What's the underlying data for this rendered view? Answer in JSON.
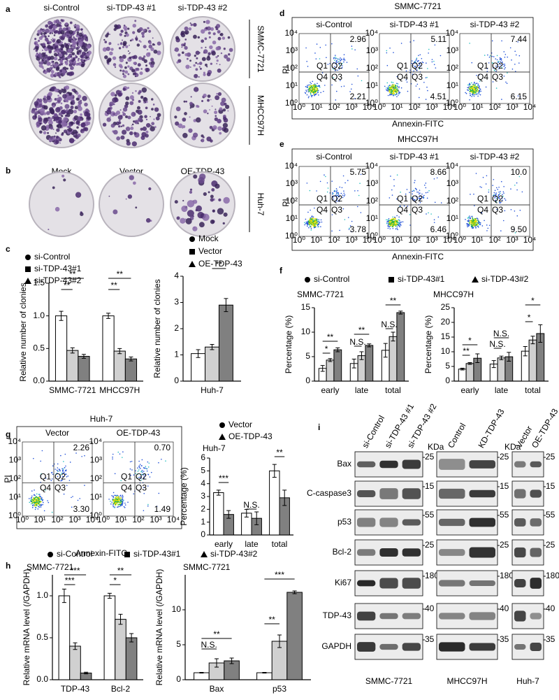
{
  "panel_labels": [
    "a",
    "b",
    "c",
    "d",
    "e",
    "f",
    "g",
    "h",
    "i"
  ],
  "colony": {
    "columns": [
      "si-Control",
      "si-TDP-43 #1",
      "si-TDP-43 #2"
    ],
    "rows": [
      "SMMC-7721",
      "MHCC97H"
    ],
    "columns_b": [
      "Mock",
      "Vector",
      "OE-TDP-43"
    ],
    "row_b": "Huh-7"
  },
  "flow": {
    "panels": [
      {
        "title": "SMMC-7721",
        "columns": [
          "si-Control",
          "si-TDP-43 #1",
          "si-TDP-43 #2"
        ],
        "upper_right": [
          "2.96",
          "5.11",
          "7.44"
        ],
        "lower_right": [
          "2.21",
          "4.51",
          "6.15"
        ]
      },
      {
        "title": "MHCC97H",
        "columns": [
          "si-Control",
          "si-TDP-43 #1",
          "si-TDP-43 #2"
        ],
        "upper_right": [
          "5.75",
          "8.66",
          "10.0"
        ],
        "lower_right": [
          "3.78",
          "6.46",
          "9.50"
        ]
      },
      {
        "title": "Huh-7",
        "columns": [
          "Vector",
          "OE-TDP-43"
        ],
        "upper_right": [
          "2.26",
          "0.70"
        ],
        "lower_right": [
          "3.30",
          "1.49"
        ]
      }
    ],
    "quadrants": [
      "Q1",
      "Q2",
      "Q4",
      "Q3"
    ],
    "axis_ticks": [
      "10⁰",
      "10¹",
      "10²",
      "10³",
      "10⁴"
    ],
    "y_label": "PI",
    "x_label": "Annexin-FITC"
  },
  "chart_data": [
    {
      "type": "bar",
      "y_label": "Relative number of clonies",
      "categories": [
        "SMMC-7721",
        "MHCC97H"
      ],
      "series": [
        {
          "name": "si-Control",
          "color": "#ffffff",
          "values": [
            1,
            1
          ],
          "errors": [
            0.07,
            0.04
          ]
        },
        {
          "name": "si-TDP-43#1",
          "color": "#d0d0d0",
          "values": [
            0.47,
            0.46
          ],
          "errors": [
            0.04,
            0.04
          ]
        },
        {
          "name": "si-TDP-43#2",
          "color": "#808080",
          "values": [
            0.38,
            0.34
          ],
          "errors": [
            0.03,
            0.03
          ]
        }
      ],
      "ylim": [
        0,
        1.5
      ],
      "yticks": [
        {
          "value": 0,
          "label": "0.0"
        },
        {
          "value": 0.5,
          "label": "0.5"
        },
        {
          "value": 1,
          "label": "1.0"
        },
        {
          "value": 1.5,
          "label": "1.5"
        }
      ],
      "annotations": [
        "**",
        "**",
        "**",
        "**"
      ]
    },
    {
      "type": "bar",
      "y_label": "Relative number of clonies",
      "categories": [
        "Huh-7"
      ],
      "series": [
        {
          "name": "Mock",
          "color": "#ffffff",
          "values": [
            1.05
          ],
          "errors": [
            0.15
          ]
        },
        {
          "name": "Vector",
          "color": "#d0d0d0",
          "values": [
            1.3
          ],
          "errors": [
            0.1
          ]
        },
        {
          "name": "OE-TDP-43",
          "color": "#808080",
          "values": [
            2.9
          ],
          "errors": [
            0.25
          ]
        }
      ],
      "ylim": [
        0,
        4
      ],
      "yticks": [
        0,
        1,
        2,
        3,
        4
      ],
      "annotations": [
        "**"
      ]
    },
    {
      "type": "bar",
      "title": "SMMC-7721",
      "y_label": "Percentage (%)",
      "categories": [
        "early",
        "late",
        "total"
      ],
      "series": [
        {
          "name": "si-Control",
          "color": "#ffffff",
          "values": [
            2.6,
            3.6,
            6.3
          ],
          "errors": [
            0.6,
            0.9,
            1.4
          ]
        },
        {
          "name": "si-TDP-43#1",
          "color": "#d0d0d0",
          "values": [
            4.3,
            5.2,
            9.1
          ],
          "errors": [
            0.3,
            0.8,
            0.9
          ]
        },
        {
          "name": "si-TDP-43#2",
          "color": "#808080",
          "values": [
            6.4,
            7.3,
            14
          ],
          "errors": [
            0.4,
            0.3,
            0.3
          ]
        }
      ],
      "ylim": [
        0,
        15
      ],
      "yticks": [
        0,
        5,
        10,
        15
      ],
      "annotations": [
        "*",
        "**",
        "N.S.",
        "**",
        "N.S.",
        "**"
      ]
    },
    {
      "type": "bar",
      "title": "MHCC97H",
      "y_label": "Percentage (%)",
      "categories": [
        "early",
        "late",
        "total"
      ],
      "series": [
        {
          "color": "#ffffff",
          "values": [
            4.1,
            5.8,
            10.2
          ],
          "errors": [
            0.3,
            1.2,
            1.6
          ]
        },
        {
          "color": "#d0d0d0",
          "values": [
            6,
            7.9,
            14
          ],
          "errors": [
            0.3,
            0.6,
            1.3
          ]
        },
        {
          "color": "#808080",
          "values": [
            7.8,
            8.3,
            16.2
          ],
          "errors": [
            1.5,
            1.5,
            3
          ]
        }
      ],
      "ylim": [
        0,
        25
      ],
      "yticks": [
        0,
        5,
        10,
        15,
        20,
        25
      ],
      "annotations": [
        "**",
        "*",
        "N.S.",
        "N.S.",
        "*",
        "*"
      ]
    },
    {
      "type": "bar",
      "title": "Huh-7",
      "y_label": "Percentage (%)",
      "categories": [
        "early",
        "late",
        "total"
      ],
      "series": [
        {
          "name": "Vector",
          "color": "#ffffff",
          "values": [
            3.3,
            1.7,
            5
          ],
          "errors": [
            0.2,
            0.3,
            0.5
          ]
        },
        {
          "name": "OE-TDP-43",
          "color": "#808080",
          "values": [
            1.6,
            1.3,
            2.9
          ],
          "errors": [
            0.3,
            0.5,
            0.6
          ]
        }
      ],
      "ylim": [
        0,
        6
      ],
      "yticks": [
        0,
        1,
        2,
        3,
        4,
        5,
        6
      ],
      "annotations": [
        "***",
        "N.S.",
        "**"
      ]
    },
    {
      "type": "bar",
      "title": "SMMC-7721",
      "y_label": "Relative mRNA level (/GAPDH)",
      "categories": [
        "TDP-43",
        "Bcl-2"
      ],
      "series": [
        {
          "name": "si-Control",
          "color": "#ffffff",
          "values": [
            1,
            1
          ],
          "errors": [
            0.08,
            0.03
          ]
        },
        {
          "name": "si-TDP-43#1",
          "color": "#d0d0d0",
          "values": [
            0.4,
            0.72
          ],
          "errors": [
            0.04,
            0.06
          ]
        },
        {
          "name": "si-TDP-43#2",
          "color": "#808080",
          "values": [
            0.08,
            0.5
          ],
          "errors": [
            0.01,
            0.05
          ]
        }
      ],
      "ylim": [
        0,
        1.25
      ],
      "yticks": [
        {
          "value": 0,
          "label": "0.0"
        },
        {
          "value": 0.5,
          "label": "0.5"
        },
        {
          "value": 1,
          "label": "1.0"
        }
      ],
      "annotations": [
        "***",
        "***",
        "*",
        "**"
      ]
    },
    {
      "type": "bar",
      "title": "SMMC-7721",
      "y_label": "Relative mRNA level (/GAPDH)",
      "categories": [
        "Bax",
        "p53"
      ],
      "series": [
        {
          "color": "#ffffff",
          "values": [
            1,
            1
          ],
          "errors": [
            0.05,
            0.05
          ]
        },
        {
          "color": "#d0d0d0",
          "values": [
            2.4,
            5.5
          ],
          "errors": [
            0.6,
            0.9
          ]
        },
        {
          "color": "#808080",
          "values": [
            2.7,
            12.5
          ],
          "errors": [
            0.4,
            0.2
          ]
        }
      ],
      "ylim": [
        0,
        15
      ],
      "yticks": [
        0,
        5,
        10
      ],
      "annotations": [
        "N.S.",
        "**",
        "**",
        "***"
      ]
    }
  ],
  "western": {
    "unit": "KDa",
    "rows": [
      "Bax",
      "C-caspase3",
      "p53",
      "Bcl-2",
      "Ki67",
      "TDP-43",
      "GAPDH"
    ],
    "groups": [
      {
        "name": "SMMC-7721",
        "columns": [
          "si-Control",
          "si-TDP-43 #1",
          "si-TDP-43 #2"
        ],
        "markers": [
          25,
          15,
          55,
          25,
          180,
          40,
          35
        ]
      },
      {
        "name": "MHCC97H",
        "columns": [
          "Control",
          "KD-TDP-43"
        ],
        "markers": [
          25,
          15,
          55,
          25,
          180,
          40,
          35
        ]
      },
      {
        "name": "Huh-7",
        "columns": [
          "Vector",
          "OE-TDP-43"
        ],
        "markers": [
          25,
          15,
          55,
          25,
          180,
          40,
          35
        ]
      }
    ]
  }
}
